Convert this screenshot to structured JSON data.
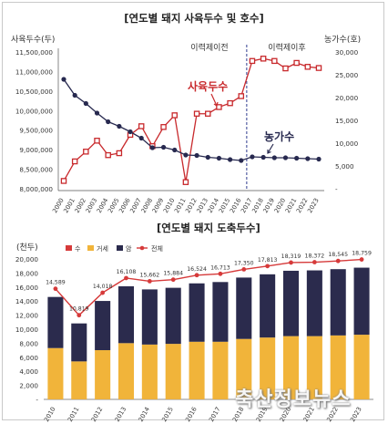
{
  "colors": {
    "farm_line": "#27294f",
    "heads_line": "#c8292c",
    "dashed_divider": "#2f3c8f",
    "bar_sow": "#2b2b4d",
    "bar_grade": "#f1b43a",
    "bar_total_line": "#d63a3a",
    "rows_bg": "#ffffff"
  },
  "chart_data": [
    {
      "type": "line",
      "title": "[연도별 돼지 사육두수 및 호수]",
      "ylabel_left": "사육두수(두)",
      "ylabel_right": "농가수(호)",
      "x": [
        "2000",
        "2001",
        "2002",
        "2003",
        "2004",
        "2005",
        "2006",
        "2007",
        "2008",
        "2009",
        "2010",
        "2011",
        "2012",
        "2013",
        "2014",
        "2015",
        "2016",
        "2017",
        "2018",
        "2019",
        "2020",
        "2021",
        "2022",
        "2023"
      ],
      "ylim_left": [
        8000000,
        11500000
      ],
      "yticks_left": [
        "11,500,000",
        "11,000,000",
        "10,500,000",
        "10,000,000",
        "9,500,000",
        "9,000,000",
        "8,500,000",
        "8,000,000"
      ],
      "ylim_right": [
        0,
        30000
      ],
      "yticks_right": [
        "30,000",
        "25,000",
        "20,000",
        "15,000",
        "10,000",
        "5,000",
        "-"
      ],
      "series": [
        {
          "name": "사육두수",
          "axis": "left",
          "values": [
            8200000,
            8700000,
            8950000,
            9230000,
            8860000,
            8910000,
            9380000,
            9600000,
            9090000,
            9580000,
            9880000,
            8170000,
            9920000,
            9920000,
            10090000,
            10190000,
            10370000,
            11270000,
            11330000,
            11270000,
            11080000,
            11220000,
            11120000,
            11090000
          ]
        },
        {
          "name": "농가수",
          "axis": "right",
          "values": [
            24000,
            20500,
            18700,
            16600,
            14700,
            13700,
            12500,
            11100,
            9000,
            9100,
            8500,
            7400,
            7300,
            6900,
            6700,
            6400,
            6200,
            7000,
            6900,
            6800,
            6800,
            6700,
            6600,
            6500
          ]
        }
      ],
      "annotations": [
        "이력제이전",
        "이력제이후"
      ],
      "divider_after_year": "2016"
    },
    {
      "type": "bar",
      "title": "[연도별 돼지 도축두수]",
      "ylabel": "(천두)",
      "categories": [
        "2010",
        "2011",
        "2012",
        "2013",
        "2014",
        "2015",
        "2016",
        "2017",
        "2018",
        "2019",
        "2020",
        "2021",
        "2022",
        "2023"
      ],
      "ylim": [
        0,
        20000
      ],
      "yticks": [
        "20,000",
        "18,000",
        "16,000",
        "14,000",
        "12,000",
        "10,000",
        "8,000",
        "6,000",
        "4,000",
        "2,000",
        "-"
      ],
      "legend": [
        "수",
        "거세",
        "암",
        "전체"
      ],
      "series": [
        {
          "name": "수",
          "values": [
            10,
            10,
            10,
            10,
            10,
            10,
            10,
            10,
            10,
            10,
            10,
            10,
            10,
            10
          ]
        },
        {
          "name": "거세",
          "values": [
            7300,
            5400,
            7000,
            8000,
            7800,
            7900,
            8200,
            8200,
            8600,
            8800,
            9000,
            9000,
            9100,
            9200
          ]
        },
        {
          "name": "암",
          "values": [
            7279,
            5409,
            7008,
            8098,
            7852,
            7984,
            8314,
            8503,
            8740,
            9003,
            9309,
            9362,
            9435,
            9549
          ]
        }
      ],
      "totals": [
        14589,
        10819,
        14018,
        16108,
        15662,
        15884,
        16524,
        16713,
        17350,
        17813,
        18319,
        18372,
        18545,
        18759
      ],
      "total_labels": [
        "14,589",
        "10,819",
        "14,018",
        "16,108",
        "15,662",
        "15,884",
        "16,524",
        "16,713",
        "17,350",
        "17,813",
        "18,319",
        "18,372",
        "18,545",
        "18,759"
      ]
    }
  ],
  "watermark": "축산정보뉴스"
}
